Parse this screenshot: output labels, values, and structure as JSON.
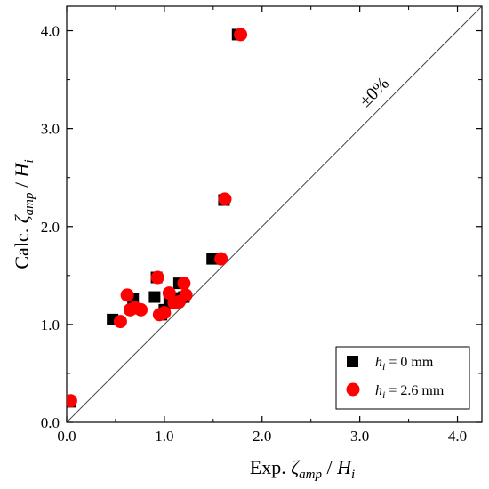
{
  "chart_data": {
    "type": "scatter",
    "xlabel": {
      "prefix": "Exp. ",
      "symbol": "ζ",
      "symbol_sub": "amp",
      "divider": " / ",
      "var": "H",
      "var_sub": "i"
    },
    "ylabel": {
      "prefix": "Calc. ",
      "symbol": "ζ",
      "symbol_sub": "amp",
      "divider": " / ",
      "var": "H",
      "var_sub": "i"
    },
    "xlim": [
      0,
      4.25
    ],
    "ylim": [
      0,
      4.25
    ],
    "xticks": [
      0.0,
      1.0,
      2.0,
      3.0,
      4.0
    ],
    "yticks": [
      0.0,
      1.0,
      2.0,
      3.0,
      4.0
    ],
    "xtick_labels": [
      "0.0",
      "1.0",
      "2.0",
      "3.0",
      "4.0"
    ],
    "ytick_labels": [
      "0.0",
      "1.0",
      "2.0",
      "3.0",
      "4.0"
    ],
    "reference_line": {
      "slope": 1,
      "label": "±0%"
    },
    "legend_position": "bottom-right",
    "series": [
      {
        "name": {
          "var": "h",
          "sub": "i",
          "rest": " = 0 mm"
        },
        "marker": "square",
        "color": "#000000",
        "points": [
          [
            0.04,
            0.21
          ],
          [
            0.47,
            1.05
          ],
          [
            0.68,
            1.26
          ],
          [
            0.9,
            1.28
          ],
          [
            0.92,
            1.48
          ],
          [
            0.97,
            1.1
          ],
          [
            1.0,
            1.15
          ],
          [
            1.05,
            1.25
          ],
          [
            1.1,
            1.27
          ],
          [
            1.15,
            1.42
          ],
          [
            1.2,
            1.28
          ],
          [
            1.49,
            1.67
          ],
          [
            1.61,
            2.27
          ],
          [
            1.75,
            3.96
          ]
        ]
      },
      {
        "name": {
          "var": "h",
          "sub": "i",
          "rest": " = 2.6 mm"
        },
        "marker": "circle",
        "color": "#ff0000",
        "points": [
          [
            0.04,
            0.22
          ],
          [
            0.55,
            1.03
          ],
          [
            0.62,
            1.3
          ],
          [
            0.65,
            1.15
          ],
          [
            0.7,
            1.17
          ],
          [
            0.76,
            1.15
          ],
          [
            0.93,
            1.48
          ],
          [
            0.95,
            1.1
          ],
          [
            1.0,
            1.12
          ],
          [
            1.05,
            1.32
          ],
          [
            1.1,
            1.22
          ],
          [
            1.15,
            1.23
          ],
          [
            1.2,
            1.42
          ],
          [
            1.22,
            1.3
          ],
          [
            1.58,
            1.67
          ],
          [
            1.62,
            2.28
          ],
          [
            1.78,
            3.96
          ]
        ]
      }
    ]
  }
}
